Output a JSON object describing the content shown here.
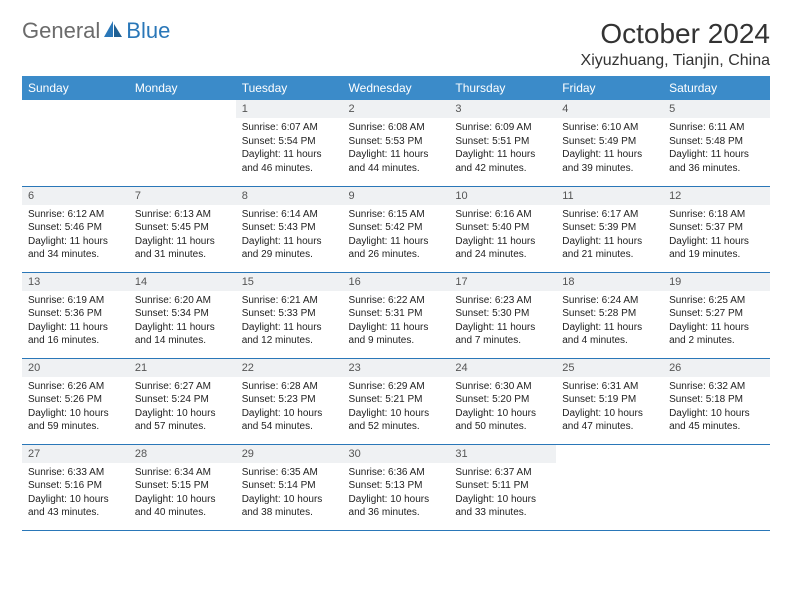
{
  "brand": {
    "general": "General",
    "blue": "Blue"
  },
  "title": "October 2024",
  "location": "Xiyuzhuang, Tianjin, China",
  "colors": {
    "header_bg": "#3b8bc9",
    "header_text": "#ffffff",
    "daynum_bg": "#eff1f3",
    "border": "#2a77b8",
    "brand_gray": "#6b6b6b",
    "brand_blue": "#2a77b8"
  },
  "weekdays": [
    "Sunday",
    "Monday",
    "Tuesday",
    "Wednesday",
    "Thursday",
    "Friday",
    "Saturday"
  ],
  "grid": [
    [
      {
        "day": "",
        "body": ""
      },
      {
        "day": "",
        "body": ""
      },
      {
        "day": "1",
        "body": "Sunrise: 6:07 AM\nSunset: 5:54 PM\nDaylight: 11 hours and 46 minutes."
      },
      {
        "day": "2",
        "body": "Sunrise: 6:08 AM\nSunset: 5:53 PM\nDaylight: 11 hours and 44 minutes."
      },
      {
        "day": "3",
        "body": "Sunrise: 6:09 AM\nSunset: 5:51 PM\nDaylight: 11 hours and 42 minutes."
      },
      {
        "day": "4",
        "body": "Sunrise: 6:10 AM\nSunset: 5:49 PM\nDaylight: 11 hours and 39 minutes."
      },
      {
        "day": "5",
        "body": "Sunrise: 6:11 AM\nSunset: 5:48 PM\nDaylight: 11 hours and 36 minutes."
      }
    ],
    [
      {
        "day": "6",
        "body": "Sunrise: 6:12 AM\nSunset: 5:46 PM\nDaylight: 11 hours and 34 minutes."
      },
      {
        "day": "7",
        "body": "Sunrise: 6:13 AM\nSunset: 5:45 PM\nDaylight: 11 hours and 31 minutes."
      },
      {
        "day": "8",
        "body": "Sunrise: 6:14 AM\nSunset: 5:43 PM\nDaylight: 11 hours and 29 minutes."
      },
      {
        "day": "9",
        "body": "Sunrise: 6:15 AM\nSunset: 5:42 PM\nDaylight: 11 hours and 26 minutes."
      },
      {
        "day": "10",
        "body": "Sunrise: 6:16 AM\nSunset: 5:40 PM\nDaylight: 11 hours and 24 minutes."
      },
      {
        "day": "11",
        "body": "Sunrise: 6:17 AM\nSunset: 5:39 PM\nDaylight: 11 hours and 21 minutes."
      },
      {
        "day": "12",
        "body": "Sunrise: 6:18 AM\nSunset: 5:37 PM\nDaylight: 11 hours and 19 minutes."
      }
    ],
    [
      {
        "day": "13",
        "body": "Sunrise: 6:19 AM\nSunset: 5:36 PM\nDaylight: 11 hours and 16 minutes."
      },
      {
        "day": "14",
        "body": "Sunrise: 6:20 AM\nSunset: 5:34 PM\nDaylight: 11 hours and 14 minutes."
      },
      {
        "day": "15",
        "body": "Sunrise: 6:21 AM\nSunset: 5:33 PM\nDaylight: 11 hours and 12 minutes."
      },
      {
        "day": "16",
        "body": "Sunrise: 6:22 AM\nSunset: 5:31 PM\nDaylight: 11 hours and 9 minutes."
      },
      {
        "day": "17",
        "body": "Sunrise: 6:23 AM\nSunset: 5:30 PM\nDaylight: 11 hours and 7 minutes."
      },
      {
        "day": "18",
        "body": "Sunrise: 6:24 AM\nSunset: 5:28 PM\nDaylight: 11 hours and 4 minutes."
      },
      {
        "day": "19",
        "body": "Sunrise: 6:25 AM\nSunset: 5:27 PM\nDaylight: 11 hours and 2 minutes."
      }
    ],
    [
      {
        "day": "20",
        "body": "Sunrise: 6:26 AM\nSunset: 5:26 PM\nDaylight: 10 hours and 59 minutes."
      },
      {
        "day": "21",
        "body": "Sunrise: 6:27 AM\nSunset: 5:24 PM\nDaylight: 10 hours and 57 minutes."
      },
      {
        "day": "22",
        "body": "Sunrise: 6:28 AM\nSunset: 5:23 PM\nDaylight: 10 hours and 54 minutes."
      },
      {
        "day": "23",
        "body": "Sunrise: 6:29 AM\nSunset: 5:21 PM\nDaylight: 10 hours and 52 minutes."
      },
      {
        "day": "24",
        "body": "Sunrise: 6:30 AM\nSunset: 5:20 PM\nDaylight: 10 hours and 50 minutes."
      },
      {
        "day": "25",
        "body": "Sunrise: 6:31 AM\nSunset: 5:19 PM\nDaylight: 10 hours and 47 minutes."
      },
      {
        "day": "26",
        "body": "Sunrise: 6:32 AM\nSunset: 5:18 PM\nDaylight: 10 hours and 45 minutes."
      }
    ],
    [
      {
        "day": "27",
        "body": "Sunrise: 6:33 AM\nSunset: 5:16 PM\nDaylight: 10 hours and 43 minutes."
      },
      {
        "day": "28",
        "body": "Sunrise: 6:34 AM\nSunset: 5:15 PM\nDaylight: 10 hours and 40 minutes."
      },
      {
        "day": "29",
        "body": "Sunrise: 6:35 AM\nSunset: 5:14 PM\nDaylight: 10 hours and 38 minutes."
      },
      {
        "day": "30",
        "body": "Sunrise: 6:36 AM\nSunset: 5:13 PM\nDaylight: 10 hours and 36 minutes."
      },
      {
        "day": "31",
        "body": "Sunrise: 6:37 AM\nSunset: 5:11 PM\nDaylight: 10 hours and 33 minutes."
      },
      {
        "day": "",
        "body": ""
      },
      {
        "day": "",
        "body": ""
      }
    ]
  ]
}
